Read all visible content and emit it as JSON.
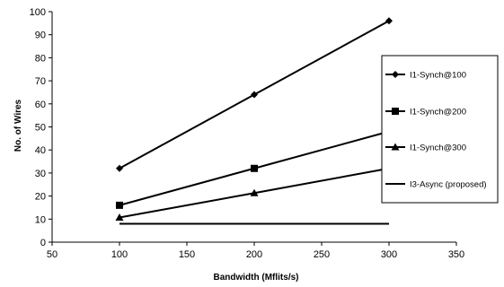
{
  "chart_data": {
    "type": "line",
    "title": "",
    "xlabel": "Bandwidth (Mflits/s)",
    "ylabel": "No. of Wires",
    "xlim": [
      50,
      350
    ],
    "ylim": [
      0,
      100
    ],
    "x_ticks": [
      50,
      100,
      150,
      200,
      250,
      300,
      350
    ],
    "y_ticks": [
      0,
      10,
      20,
      30,
      40,
      50,
      60,
      70,
      80,
      90,
      100
    ],
    "grid": false,
    "legend_position": "right",
    "series": [
      {
        "name": "I1-Synch@100",
        "marker": "diamond",
        "x": [
          100,
          200,
          300
        ],
        "y": [
          32,
          64,
          96
        ]
      },
      {
        "name": "I1-Synch@200",
        "marker": "square",
        "x": [
          100,
          200,
          300
        ],
        "y": [
          16,
          32,
          48
        ]
      },
      {
        "name": "I1-Synch@300",
        "marker": "triangle",
        "x": [
          100,
          200,
          300
        ],
        "y": [
          10.7,
          21.3,
          32
        ]
      },
      {
        "name": "I3-Async (proposed)",
        "marker": "none",
        "x": [
          100,
          300
        ],
        "y": [
          8,
          8
        ]
      }
    ],
    "colors": {
      "line": "#000000",
      "background": "#ffffff"
    }
  }
}
